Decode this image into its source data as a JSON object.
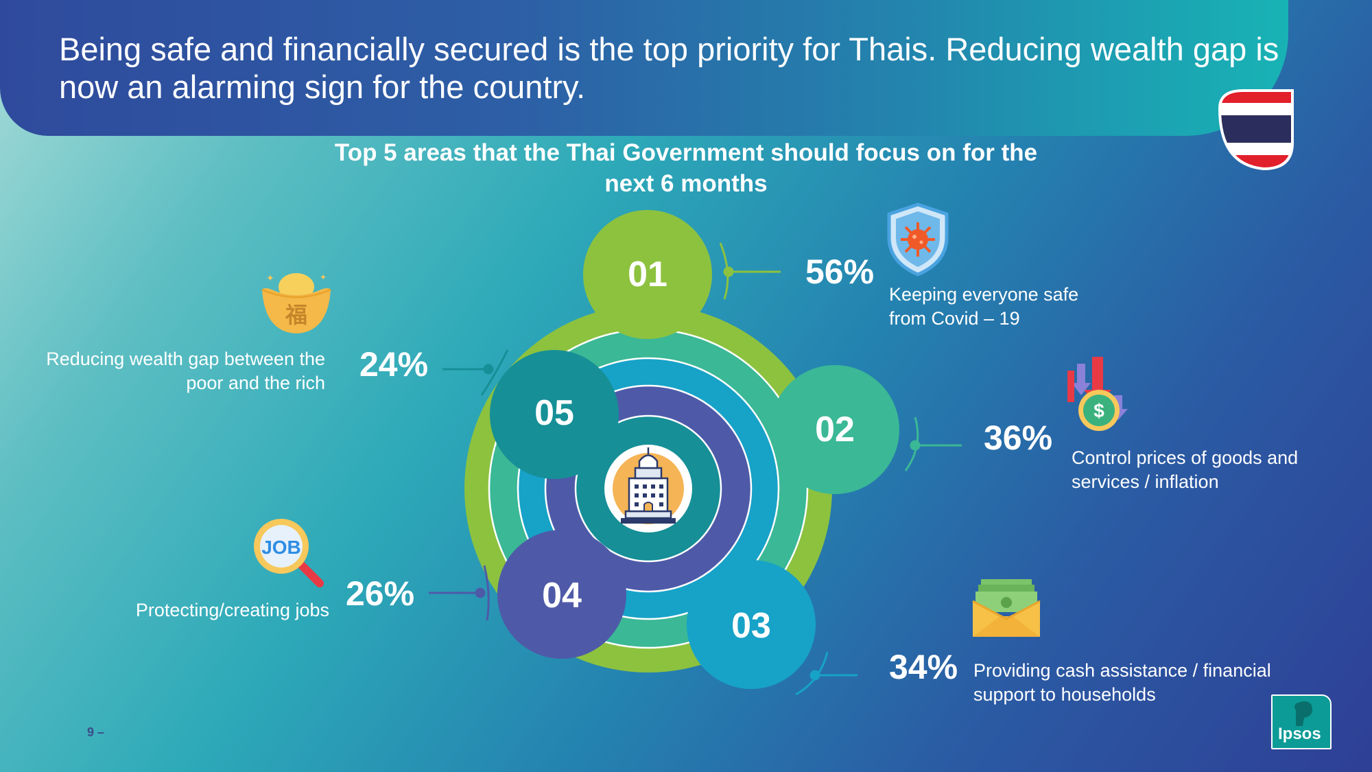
{
  "headline": "Being safe and financially secured is the top priority for Thais. Reducing wealth gap is now an alarming sign for the country.",
  "page_number": "9 –",
  "logo_text": "Ipsos",
  "colors": {
    "area_01": "#8dc23f",
    "area_02": "#3bb896",
    "area_03": "#17a2c8",
    "area_04": "#4e5aa8",
    "area_05": "#168f97"
  },
  "chart_data": {
    "type": "infographic-ranking",
    "title": "Top 5 areas that the Thai Government should focus on for the next 6 months",
    "items": [
      {
        "rank": "01",
        "label": "Keeping everyone safe from Covid – 19",
        "value": 56,
        "value_label": "56%",
        "icon": "shield-virus-icon"
      },
      {
        "rank": "02",
        "label": "Control prices of goods and services / inflation",
        "value": 36,
        "value_label": "36%",
        "icon": "falling-price-coin-icon"
      },
      {
        "rank": "03",
        "label": "Providing cash assistance / financial support to households",
        "value": 34,
        "value_label": "34%",
        "icon": "cash-envelope-icon"
      },
      {
        "rank": "04",
        "label": "Protecting/creating jobs",
        "value": 26,
        "value_label": "26%",
        "icon": "job-search-icon"
      },
      {
        "rank": "05",
        "label": "Reducing wealth gap between the poor and the rich",
        "value": 24,
        "value_label": "24%",
        "icon": "gold-ingot-icon"
      }
    ]
  }
}
